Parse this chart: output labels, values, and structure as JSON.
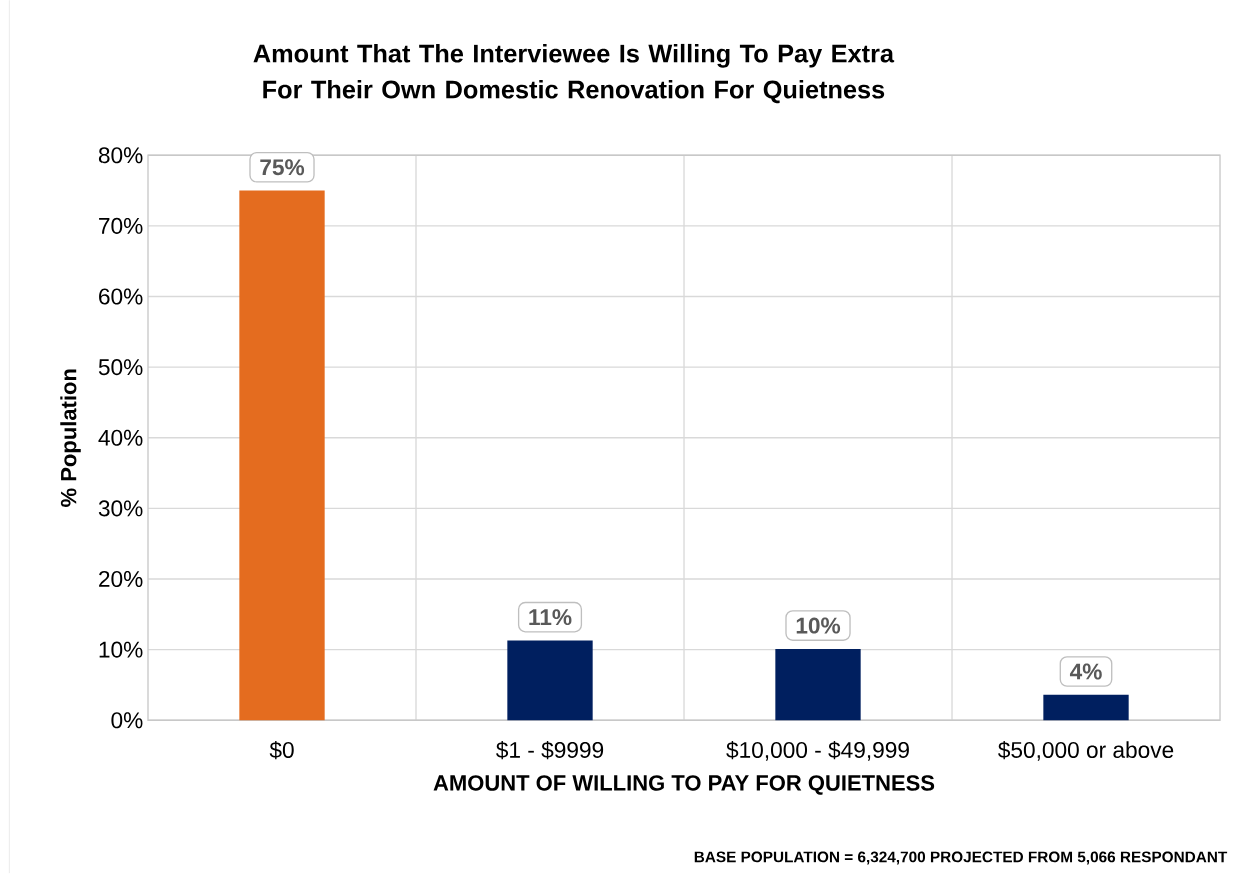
{
  "chart_data": {
    "type": "bar",
    "title": "Amount That The Interviewee Is Willing To Pay Extra For Their Own Domestic Renovation For Quietness",
    "xlabel": "AMOUNT OF WILLING TO PAY FOR QUIETNESS",
    "ylabel": "% Population",
    "categories": [
      "$0",
      "$1 - $9999",
      "$10,000 - $49,999",
      "$50,000 or above"
    ],
    "values": [
      75,
      11.3,
      10.1,
      3.6
    ],
    "value_labels": [
      "75%",
      "11%",
      "10%",
      "4%"
    ],
    "colors": [
      "#e46c1f",
      "#001f5f",
      "#001f5f",
      "#001f5f"
    ],
    "ylim": [
      0,
      80
    ],
    "yticks": [
      {
        "value": 0,
        "label": "0%"
      },
      {
        "value": 10,
        "label": "10%"
      },
      {
        "value": 20,
        "label": "20%"
      },
      {
        "value": 30,
        "label": "30%"
      },
      {
        "value": 40,
        "label": "40%"
      },
      {
        "value": 50,
        "label": "50%"
      },
      {
        "value": 60,
        "label": "60%"
      },
      {
        "value": 70,
        "label": "70%"
      },
      {
        "value": 80,
        "label": "80%"
      }
    ],
    "grid": true,
    "annotations": [
      "BASE POPULATION = 6,324,700 PROJECTED FROM 5,066 RESPONDANT"
    ]
  }
}
